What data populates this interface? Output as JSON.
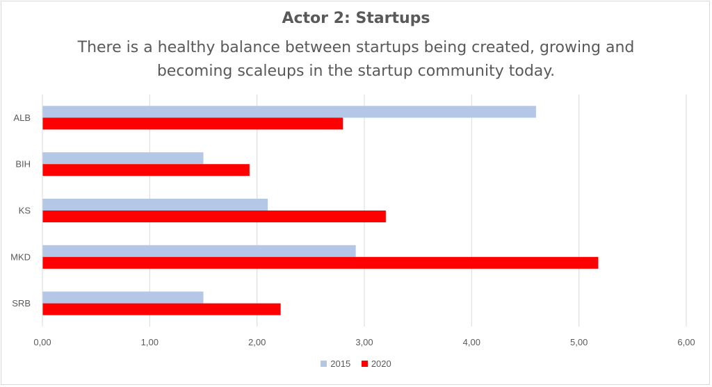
{
  "chart_data": {
    "type": "bar",
    "orientation": "horizontal",
    "title": "Actor 2: Startups",
    "subtitle": "There is a healthy balance between startups being created, growing and becoming scaleups in the startup community today.",
    "categories": [
      "ALB",
      "BIH",
      "KS",
      "MKD",
      "SRB"
    ],
    "series": [
      {
        "name": "2015",
        "color": "#b4c7e7",
        "values": [
          4.6,
          1.5,
          2.1,
          2.92,
          1.5
        ]
      },
      {
        "name": "2020",
        "color": "#ff0000",
        "values": [
          2.8,
          1.93,
          3.2,
          5.18,
          2.22
        ]
      }
    ],
    "x_ticks": [
      "0,00",
      "1,00",
      "2,00",
      "3,00",
      "4,00",
      "5,00",
      "6,00"
    ],
    "xlim": [
      0,
      6
    ],
    "grid": "vertical",
    "legend_position": "bottom"
  }
}
